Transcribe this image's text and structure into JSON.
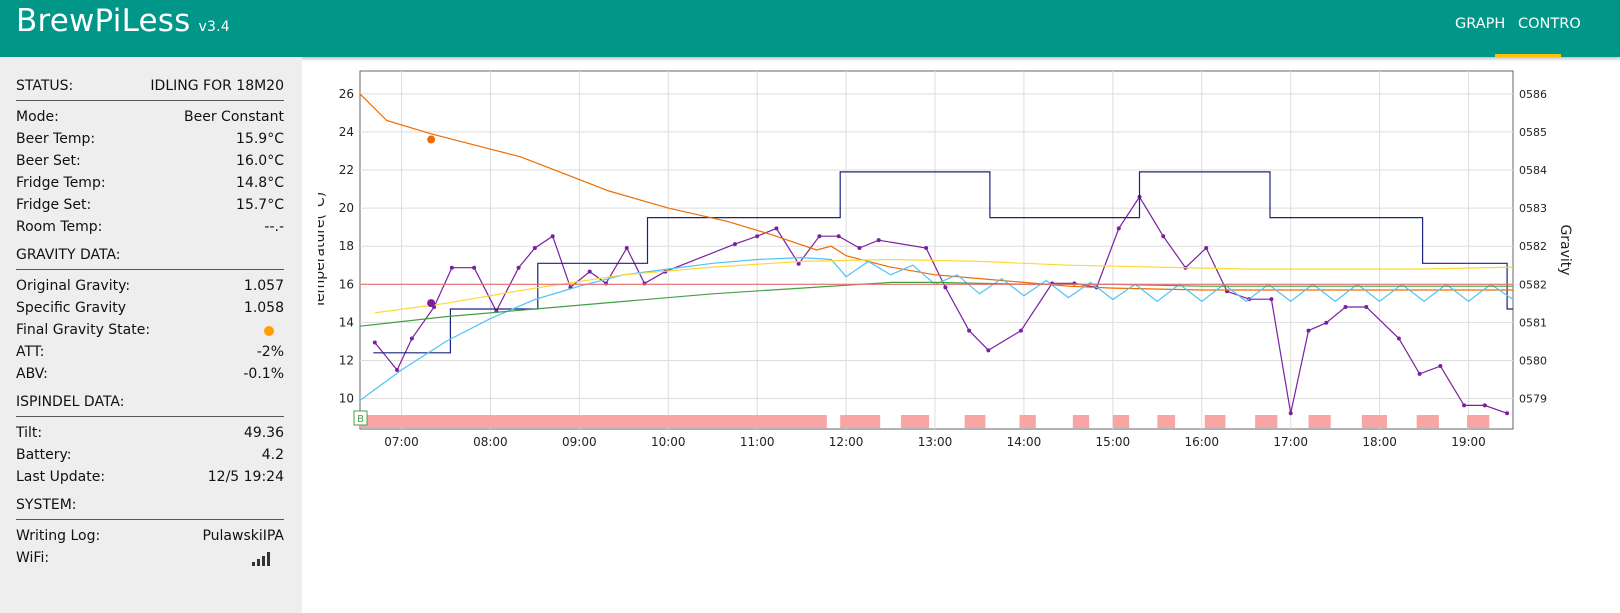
{
  "app": {
    "title": "BrewPiLess",
    "version": "v3.4"
  },
  "nav": {
    "tabs": [
      {
        "label": "GRAPH",
        "active": true
      },
      {
        "label": "CONTRO"
      }
    ],
    "accent_color": "#ffc107"
  },
  "colors": {
    "header": "#009688",
    "sidebar": "#eeeeee"
  },
  "status": {
    "label": "STATUS:",
    "value": "IDLING FOR 18M20",
    "items": [
      {
        "label": "Mode:",
        "value": "Beer Constant"
      },
      {
        "label": "Beer Temp:",
        "value": "15.9°C"
      },
      {
        "label": "Beer Set:",
        "value": "16.0°C"
      },
      {
        "label": "Fridge Temp:",
        "value": "14.8°C"
      },
      {
        "label": "Fridge Set:",
        "value": "15.7°C"
      },
      {
        "label": "Room Temp:",
        "value": "--.-"
      }
    ]
  },
  "gravity": {
    "label": "GRAVITY DATA:",
    "items": [
      {
        "label": "Original Gravity:",
        "value": "1.057"
      },
      {
        "label": "Specific Gravity",
        "value": "1.058"
      },
      {
        "label": "Final Gravity State:",
        "indicator_color": "#ffa000"
      },
      {
        "label": "ATT:",
        "value": "-2%"
      },
      {
        "label": "ABV:",
        "value": "-0.1%"
      }
    ]
  },
  "ispindel": {
    "label": "ISPINDEL DATA:",
    "items": [
      {
        "label": "Tilt:",
        "value": "49.36"
      },
      {
        "label": "Battery:",
        "value": "4.2"
      },
      {
        "label": "Last Update:",
        "value": "12/5 19:24"
      }
    ]
  },
  "system": {
    "label": "SYSTEM:",
    "items": [
      {
        "label": "Writing Log:",
        "value": "PulawskiIPA"
      },
      {
        "label": "WiFi:",
        "icon": "wifi-signal-icon"
      }
    ]
  },
  "chart_data": {
    "type": "line",
    "ylabel": "Temperature(°C)",
    "y2label": "Gravity",
    "xlim": [
      "06:32",
      "19:30"
    ],
    "ylim": [
      8.4,
      27.2
    ],
    "y2lim": [
      1.05783,
      1.05874
    ],
    "x_ticks": [
      "07:00",
      "08:00",
      "09:00",
      "10:00",
      "11:00",
      "12:00",
      "13:00",
      "14:00",
      "15:00",
      "16:00",
      "17:00",
      "18:00",
      "19:00"
    ],
    "y_ticks": [
      "10",
      "12",
      "14",
      "16",
      "18",
      "20",
      "22",
      "24",
      "26"
    ],
    "y2_ticks": [
      "0579",
      "0580",
      "0581",
      "0582",
      "0582",
      "0583",
      "0584",
      "0585",
      "0586"
    ],
    "grid": true,
    "heater_marker": "B",
    "series": [
      {
        "color": "#7b1fa2",
        "axis": "gravity",
        "markers": true,
        "points": [
          [
            "06:42",
            1.05805
          ],
          [
            "06:57",
            1.05798
          ],
          [
            "07:07",
            1.05806
          ],
          [
            "07:22",
            1.05814
          ],
          [
            "07:34",
            1.05824
          ],
          [
            "07:49",
            1.05824
          ],
          [
            "08:04",
            1.05813
          ],
          [
            "08:19",
            1.05824
          ],
          [
            "08:30",
            1.05829
          ],
          [
            "08:42",
            1.05832
          ],
          [
            "08:54",
            1.05819
          ],
          [
            "09:07",
            1.05823
          ],
          [
            "09:18",
            1.0582
          ],
          [
            "09:32",
            1.05829
          ],
          [
            "09:44",
            1.0582
          ],
          [
            "09:58",
            1.05823
          ],
          [
            "10:45",
            1.0583
          ],
          [
            "11:00",
            1.05832
          ],
          [
            "11:13",
            1.05834
          ],
          [
            "11:28",
            1.05825
          ],
          [
            "11:42",
            1.05832
          ],
          [
            "11:55",
            1.05832
          ],
          [
            "12:09",
            1.05829
          ],
          [
            "12:22",
            1.05831
          ],
          [
            "12:54",
            1.05829
          ],
          [
            "13:07",
            1.05819
          ],
          [
            "13:23",
            1.05808
          ],
          [
            "13:36",
            1.05803
          ],
          [
            "13:58",
            1.05808
          ],
          [
            "14:19",
            1.0582
          ],
          [
            "14:34",
            1.0582
          ],
          [
            "14:49",
            1.05819
          ],
          [
            "15:04",
            1.05834
          ],
          [
            "15:18",
            1.05842
          ],
          [
            "15:34",
            1.05832
          ],
          [
            "15:49",
            1.05824
          ],
          [
            "16:03",
            1.05829
          ],
          [
            "16:17",
            1.05818
          ],
          [
            "16:32",
            1.05816
          ],
          [
            "16:47",
            1.05816
          ],
          [
            "17:00",
            1.05787
          ],
          [
            "17:12",
            1.05808
          ],
          [
            "17:24",
            1.0581
          ],
          [
            "17:37",
            1.05814
          ],
          [
            "17:51",
            1.05814
          ],
          [
            "18:13",
            1.05806
          ],
          [
            "18:27",
            1.05797
          ],
          [
            "18:41",
            1.05799
          ],
          [
            "18:57",
            1.05789
          ],
          [
            "19:11",
            1.05789
          ],
          [
            "19:26",
            1.05787
          ]
        ]
      },
      {
        "color": "#1a237e",
        "axis": "temp",
        "name_hint": "fridge-set",
        "step": true,
        "points": [
          [
            "06:41",
            12.4
          ],
          [
            "07:33",
            12.4
          ],
          [
            "07:33",
            14.7
          ],
          [
            "08:32",
            14.7
          ],
          [
            "08:32",
            17.1
          ],
          [
            "09:46",
            17.1
          ],
          [
            "09:46",
            19.5
          ],
          [
            "11:56",
            19.5
          ],
          [
            "11:56",
            21.9
          ],
          [
            "13:37",
            21.9
          ],
          [
            "13:37",
            19.5
          ],
          [
            "15:18",
            19.5
          ],
          [
            "15:18",
            21.9
          ],
          [
            "16:46",
            21.9
          ],
          [
            "16:46",
            19.5
          ],
          [
            "18:29",
            19.5
          ],
          [
            "18:29",
            17.1
          ],
          [
            "19:26",
            17.1
          ],
          [
            "19:26",
            14.7
          ],
          [
            "19:30",
            14.7
          ]
        ]
      },
      {
        "color": "#ef6c00",
        "axis": "temp",
        "name_hint": "beer-temp",
        "points": [
          [
            "06:32",
            26.0
          ],
          [
            "06:50",
            24.6
          ],
          [
            "07:20",
            23.9
          ],
          [
            "07:50",
            23.3
          ],
          [
            "08:20",
            22.7
          ],
          [
            "08:50",
            21.8
          ],
          [
            "09:20",
            20.9
          ],
          [
            "10:00",
            20.0
          ],
          [
            "10:40",
            19.3
          ],
          [
            "11:10",
            18.6
          ],
          [
            "11:40",
            17.8
          ],
          [
            "11:50",
            18.0
          ],
          [
            "12:00",
            17.5
          ],
          [
            "12:30",
            16.9
          ],
          [
            "13:00",
            16.5
          ],
          [
            "13:30",
            16.3
          ],
          [
            "14:00",
            16.1
          ],
          [
            "14:30",
            15.9
          ],
          [
            "15:00",
            15.8
          ],
          [
            "16:00",
            15.7
          ],
          [
            "17:00",
            15.7
          ],
          [
            "18:00",
            15.7
          ],
          [
            "19:00",
            15.7
          ],
          [
            "19:30",
            15.7
          ]
        ]
      },
      {
        "color": "#4fc3f7",
        "axis": "temp",
        "name_hint": "fridge-temp",
        "points": [
          [
            "06:32",
            9.9
          ],
          [
            "07:00",
            11.5
          ],
          [
            "07:30",
            13.0
          ],
          [
            "08:00",
            14.2
          ],
          [
            "08:30",
            15.2
          ],
          [
            "09:00",
            15.9
          ],
          [
            "09:30",
            16.5
          ],
          [
            "10:00",
            16.8
          ],
          [
            "10:30",
            17.1
          ],
          [
            "11:00",
            17.3
          ],
          [
            "11:30",
            17.4
          ],
          [
            "11:50",
            17.3
          ],
          [
            "12:00",
            16.4
          ],
          [
            "12:15",
            17.2
          ],
          [
            "12:30",
            16.5
          ],
          [
            "12:45",
            17.0
          ],
          [
            "13:00",
            16.0
          ],
          [
            "13:15",
            16.5
          ],
          [
            "13:30",
            15.5
          ],
          [
            "13:45",
            16.3
          ],
          [
            "14:00",
            15.4
          ],
          [
            "14:15",
            16.2
          ],
          [
            "14:30",
            15.3
          ],
          [
            "14:45",
            16.1
          ],
          [
            "15:00",
            15.2
          ],
          [
            "15:15",
            16.0
          ],
          [
            "15:30",
            15.1
          ],
          [
            "15:45",
            16.0
          ],
          [
            "16:00",
            15.1
          ],
          [
            "16:15",
            16.0
          ],
          [
            "16:30",
            15.1
          ],
          [
            "16:45",
            16.0
          ],
          [
            "17:00",
            15.1
          ],
          [
            "17:15",
            16.0
          ],
          [
            "17:30",
            15.1
          ],
          [
            "17:45",
            16.0
          ],
          [
            "18:00",
            15.1
          ],
          [
            "18:15",
            16.0
          ],
          [
            "18:30",
            15.1
          ],
          [
            "18:45",
            16.0
          ],
          [
            "19:00",
            15.1
          ],
          [
            "19:15",
            16.0
          ],
          [
            "19:30",
            15.2
          ]
        ]
      },
      {
        "color": "#fdd835",
        "axis": "temp",
        "name_hint": "beer-set",
        "points": [
          [
            "06:42",
            14.5
          ],
          [
            "07:30",
            15.0
          ],
          [
            "08:30",
            15.8
          ],
          [
            "09:30",
            16.5
          ],
          [
            "10:30",
            16.9
          ],
          [
            "11:30",
            17.2
          ],
          [
            "12:30",
            17.3
          ],
          [
            "13:30",
            17.2
          ],
          [
            "14:30",
            17.0
          ],
          [
            "15:30",
            16.9
          ],
          [
            "16:30",
            16.8
          ],
          [
            "17:30",
            16.8
          ],
          [
            "18:30",
            16.8
          ],
          [
            "19:30",
            16.9
          ]
        ]
      },
      {
        "color": "#43a047",
        "axis": "temp",
        "name_hint": "gravity-trend",
        "points": [
          [
            "06:32",
            13.8
          ],
          [
            "07:30",
            14.3
          ],
          [
            "08:30",
            14.7
          ],
          [
            "09:30",
            15.1
          ],
          [
            "10:30",
            15.5
          ],
          [
            "11:30",
            15.8
          ],
          [
            "12:30",
            16.1
          ],
          [
            "13:00",
            16.1
          ],
          [
            "14:00",
            16.0
          ],
          [
            "15:00",
            16.0
          ],
          [
            "16:00",
            15.9
          ],
          [
            "17:00",
            15.9
          ],
          [
            "18:00",
            15.9
          ],
          [
            "19:00",
            15.9
          ],
          [
            "19:30",
            15.9
          ]
        ]
      },
      {
        "color": "#e57373",
        "axis": "temp",
        "name_hint": "room-temp",
        "points": [
          [
            "06:32",
            16.0
          ],
          [
            "19:30",
            16.0
          ]
        ]
      }
    ],
    "heating_periods": [
      [
        "06:32",
        "11:47"
      ],
      [
        "11:56",
        "12:23"
      ],
      [
        "12:37",
        "12:56"
      ],
      [
        "13:20",
        "13:34"
      ],
      [
        "13:57",
        "14:08"
      ],
      [
        "14:33",
        "14:44"
      ],
      [
        "15:00",
        "15:11"
      ],
      [
        "15:30",
        "15:42"
      ],
      [
        "16:02",
        "16:16"
      ],
      [
        "16:36",
        "16:51"
      ],
      [
        "17:12",
        "17:27"
      ],
      [
        "17:48",
        "18:05"
      ],
      [
        "18:25",
        "18:40"
      ],
      [
        "18:59",
        "19:14"
      ]
    ],
    "highlight_points": [
      {
        "time": "07:20",
        "value": 23.6,
        "axis": "temp",
        "color": "#ef6c00"
      },
      {
        "time": "07:20",
        "value": 1.05815,
        "axis": "gravity",
        "color": "#7b1fa2"
      }
    ]
  }
}
